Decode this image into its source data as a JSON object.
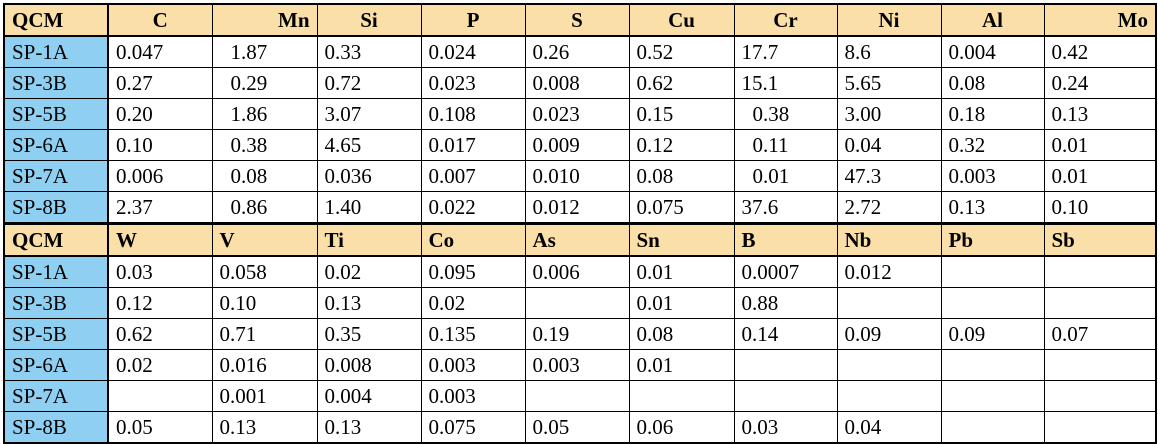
{
  "table": {
    "header_color": "#fbdfa8",
    "sample_color": "#8fd0f2",
    "top": {
      "corner": "QCM",
      "columns": [
        "C",
        "Mn",
        "Si",
        "P",
        "S",
        "Cu",
        "Cr",
        "Ni",
        "Al",
        "Mo"
      ],
      "rows": [
        {
          "sample": "SP-1A",
          "values": [
            "0.047",
            "1.87",
            "0.33",
            "0.024",
            "0.26",
            "0.52",
            "17.7",
            "8.6",
            "0.004",
            "0.42"
          ]
        },
        {
          "sample": "SP-3B",
          "values": [
            "0.27",
            "0.29",
            "0.72",
            "0.023",
            "0.008",
            "0.62",
            "15.1",
            "5.65",
            "0.08",
            "0.24"
          ]
        },
        {
          "sample": "SP-5B",
          "values": [
            "0.20",
            "1.86",
            "3.07",
            "0.108",
            "0.023",
            "0.15",
            "0.38",
            "3.00",
            "0.18",
            "0.13"
          ]
        },
        {
          "sample": "SP-6A",
          "values": [
            "0.10",
            "0.38",
            "4.65",
            "0.017",
            "0.009",
            "0.12",
            "0.11",
            "0.04",
            "0.32",
            "0.01"
          ]
        },
        {
          "sample": "SP-7A",
          "values": [
            "0.006",
            "0.08",
            "0.036",
            "0.007",
            "0.010",
            "0.08",
            "0.01",
            "47.3",
            "0.003",
            "0.01"
          ]
        },
        {
          "sample": "SP-8B",
          "values": [
            "2.37",
            "0.86",
            "1.40",
            "0.022",
            "0.012",
            "0.075",
            "37.6",
            "2.72",
            "0.13",
            "0.10"
          ]
        }
      ]
    },
    "bottom": {
      "corner": "QCM",
      "columns": [
        "W",
        "V",
        "Ti",
        "Co",
        "As",
        "Sn",
        "B",
        "Nb",
        "Pb",
        "Sb"
      ],
      "rows": [
        {
          "sample": "SP-1A",
          "values": [
            "0.03",
            "0.058",
            "0.02",
            "0.095",
            "0.006",
            "0.01",
            "0.0007",
            "0.012",
            "",
            ""
          ]
        },
        {
          "sample": "SP-3B",
          "values": [
            "0.12",
            "0.10",
            "0.13",
            "0.02",
            "",
            "0.01",
            "0.88",
            "",
            "",
            ""
          ]
        },
        {
          "sample": "SP-5B",
          "values": [
            "0.62",
            "0.71",
            "0.35",
            "0.135",
            "0.19",
            "0.08",
            "0.14",
            "0.09",
            "0.09",
            "0.07"
          ]
        },
        {
          "sample": "SP-6A",
          "values": [
            "0.02",
            "0.016",
            "0.008",
            "0.003",
            "0.003",
            "0.01",
            "",
            "",
            "",
            ""
          ]
        },
        {
          "sample": "SP-7A",
          "values": [
            "",
            "0.001",
            "0.004",
            "0.003",
            "",
            "",
            "",
            "",
            "",
            ""
          ]
        },
        {
          "sample": "SP-8B",
          "values": [
            "0.05",
            "0.13",
            "0.13",
            "0.075",
            "0.05",
            "0.06",
            "0.03",
            "0.04",
            "",
            ""
          ]
        }
      ]
    }
  }
}
